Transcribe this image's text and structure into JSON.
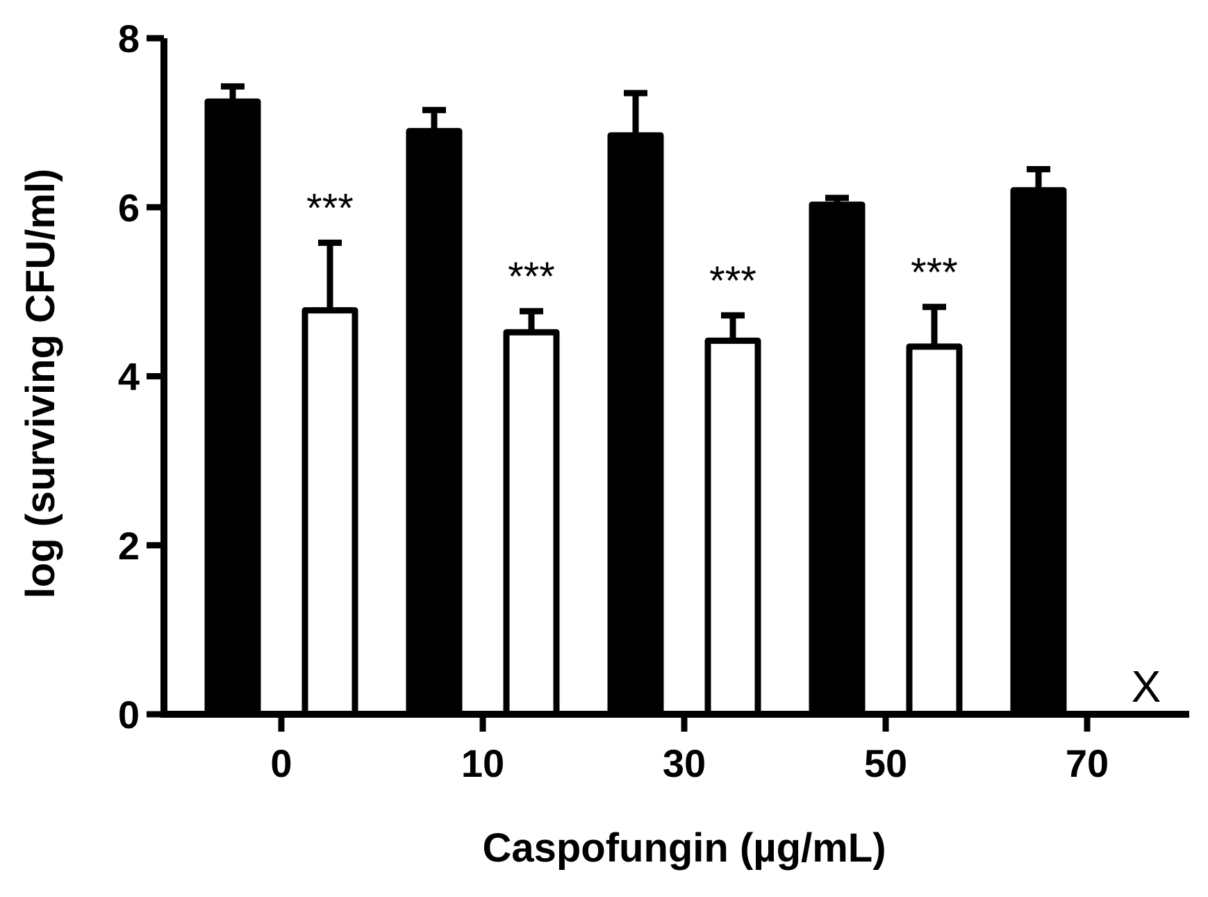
{
  "chart_data": {
    "type": "bar",
    "title": "",
    "xlabel": "Caspofungin (µg/mL)",
    "ylabel": "log (surviving CFU/ml)",
    "ylim": [
      0,
      8
    ],
    "yticks": [
      "0",
      "2",
      "4",
      "6",
      "8"
    ],
    "categories": [
      "0",
      "10",
      "30",
      "50",
      "70"
    ],
    "grid": false,
    "legend": "none",
    "series": [
      {
        "fill": "#000000",
        "values": [
          7.25,
          6.9,
          6.85,
          6.03,
          6.2
        ],
        "errors": [
          0.18,
          0.25,
          0.5,
          0.08,
          0.25
        ]
      },
      {
        "fill": "#ffffff",
        "values": [
          4.78,
          4.52,
          4.42,
          4.35,
          null
        ],
        "errors": [
          0.8,
          0.25,
          0.3,
          0.47,
          null
        ]
      }
    ],
    "annotations": [
      {
        "category": "0",
        "series": 1,
        "text": "***"
      },
      {
        "category": "10",
        "series": 1,
        "text": "***"
      },
      {
        "category": "30",
        "series": 1,
        "text": "***"
      },
      {
        "category": "50",
        "series": 1,
        "text": "***"
      },
      {
        "category": "70",
        "series": 1,
        "text": "X"
      }
    ]
  }
}
